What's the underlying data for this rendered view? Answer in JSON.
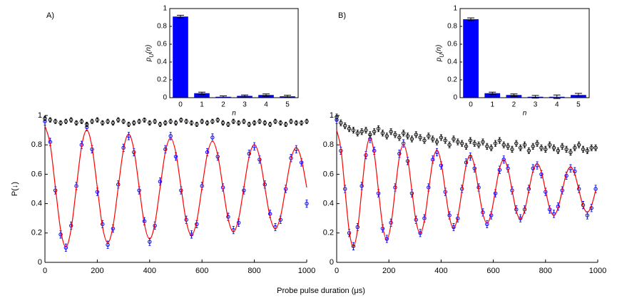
{
  "xlabel": "Probe pulse duration (μs)",
  "chart_data": [
    {
      "type": "scatter",
      "panel": "A)",
      "ylabel": "P(↓)",
      "xlim": [
        0,
        1000
      ],
      "ylim": [
        0,
        1
      ],
      "xticks": [
        0,
        200,
        400,
        600,
        800,
        1000
      ],
      "yticks": [
        0,
        0.2,
        0.4,
        0.6,
        0.8,
        1
      ],
      "x": [
        0,
        20,
        40,
        60,
        80,
        100,
        120,
        140,
        160,
        180,
        200,
        220,
        240,
        260,
        280,
        300,
        320,
        340,
        360,
        380,
        400,
        420,
        440,
        460,
        480,
        500,
        520,
        540,
        560,
        580,
        600,
        620,
        640,
        660,
        680,
        700,
        720,
        740,
        760,
        780,
        800,
        820,
        840,
        860,
        880,
        900,
        920,
        940,
        960,
        980,
        1000
      ],
      "series": [
        {
          "type": "line",
          "color": "#ff0000",
          "values": [
            0.93,
            0.804,
            0.51,
            0.221,
            0.105,
            0.226,
            0.51,
            0.789,
            0.901,
            0.784,
            0.51,
            0.241,
            0.133,
            0.246,
            0.51,
            0.769,
            0.874,
            0.765,
            0.51,
            0.26,
            0.159,
            0.264,
            0.51,
            0.751,
            0.848,
            0.747,
            0.51,
            0.277,
            0.184,
            0.282,
            0.51,
            0.734,
            0.825,
            0.731,
            0.51,
            0.294,
            0.207,
            0.298,
            0.51,
            0.719,
            0.802,
            0.715,
            0.51,
            0.309,
            0.228,
            0.313,
            0.51,
            0.704,
            0.782,
            0.7,
            0.51
          ]
        },
        {
          "type": "scatter",
          "color": "#0000ff",
          "error": 0.025,
          "values": [
            0.96,
            0.82,
            0.49,
            0.19,
            0.1,
            0.25,
            0.52,
            0.8,
            0.92,
            0.77,
            0.48,
            0.26,
            0.12,
            0.23,
            0.53,
            0.78,
            0.86,
            0.75,
            0.49,
            0.28,
            0.14,
            0.25,
            0.55,
            0.77,
            0.86,
            0.72,
            0.49,
            0.29,
            0.19,
            0.26,
            0.52,
            0.75,
            0.85,
            0.72,
            0.51,
            0.31,
            0.22,
            0.27,
            0.49,
            0.74,
            0.79,
            0.7,
            0.53,
            0.33,
            0.24,
            0.29,
            0.5,
            0.71,
            0.77,
            0.68,
            0.4
          ]
        },
        {
          "type": "scatter",
          "color": "#000000",
          "error": 0.015,
          "values": [
            0.98,
            0.97,
            0.96,
            0.95,
            0.96,
            0.97,
            0.95,
            0.96,
            0.94,
            0.96,
            0.97,
            0.95,
            0.96,
            0.95,
            0.97,
            0.96,
            0.94,
            0.95,
            0.96,
            0.97,
            0.95,
            0.96,
            0.94,
            0.95,
            0.96,
            0.95,
            0.97,
            0.96,
            0.95,
            0.94,
            0.96,
            0.95,
            0.96,
            0.97,
            0.95,
            0.94,
            0.96,
            0.95,
            0.96,
            0.94,
            0.95,
            0.96,
            0.95,
            0.94,
            0.96,
            0.95,
            0.94,
            0.96,
            0.95,
            0.95,
            0.96
          ]
        }
      ]
    },
    {
      "type": "bar",
      "xlabel": "n",
      "ylabel": [
        "p",
        "U",
        "(n)"
      ],
      "categories": [
        "0",
        "1",
        "2",
        "3",
        "4",
        "5"
      ],
      "values": [
        0.91,
        0.05,
        0.01,
        0.02,
        0.03,
        0.015
      ],
      "errors": [
        0.015,
        0.012,
        0.01,
        0.01,
        0.012,
        0.012
      ],
      "color": "#0000ff",
      "ylim": [
        0,
        1
      ],
      "yticks": [
        0,
        0.2,
        0.4,
        0.6,
        0.8,
        1
      ]
    },
    {
      "type": "scatter",
      "panel": "B)",
      "xlim": [
        0,
        1000
      ],
      "ylim": [
        0,
        1
      ],
      "xticks": [
        0,
        200,
        400,
        600,
        800,
        1000
      ],
      "yticks": [
        0,
        0.2,
        0.4,
        0.6,
        0.8,
        1
      ],
      "x": [
        0,
        16,
        32,
        48,
        64,
        80,
        96,
        112,
        128,
        144,
        160,
        176,
        192,
        208,
        224,
        240,
        256,
        272,
        288,
        304,
        320,
        336,
        352,
        368,
        384,
        400,
        416,
        432,
        448,
        464,
        480,
        496,
        512,
        528,
        544,
        560,
        576,
        592,
        608,
        624,
        640,
        656,
        672,
        688,
        704,
        720,
        736,
        752,
        768,
        784,
        800,
        816,
        832,
        848,
        864,
        880,
        896,
        912,
        928,
        944,
        960,
        976,
        992
      ],
      "series": [
        {
          "type": "line",
          "color": "#ff0000",
          "values": [
            0.9,
            0.775,
            0.49,
            0.214,
            0.107,
            0.223,
            0.49,
            0.747,
            0.848,
            0.739,
            0.49,
            0.249,
            0.155,
            0.257,
            0.49,
            0.715,
            0.803,
            0.708,
            0.49,
            0.279,
            0.197,
            0.286,
            0.49,
            0.687,
            0.764,
            0.68,
            0.49,
            0.306,
            0.234,
            0.312,
            0.49,
            0.662,
            0.729,
            0.656,
            0.49,
            0.33,
            0.266,
            0.334,
            0.49,
            0.641,
            0.699,
            0.636,
            0.49,
            0.349,
            0.295,
            0.354,
            0.49,
            0.622,
            0.673,
            0.617,
            0.49,
            0.367,
            0.319,
            0.371,
            0.49,
            0.605,
            0.65,
            0.601,
            0.49,
            0.383,
            0.341,
            0.386,
            0.49
          ]
        },
        {
          "type": "scatter",
          "color": "#0000ff",
          "error": 0.025,
          "values": [
            0.97,
            0.76,
            0.5,
            0.2,
            0.11,
            0.24,
            0.52,
            0.73,
            0.84,
            0.76,
            0.47,
            0.23,
            0.16,
            0.27,
            0.51,
            0.74,
            0.81,
            0.69,
            0.47,
            0.29,
            0.2,
            0.3,
            0.51,
            0.7,
            0.75,
            0.66,
            0.48,
            0.32,
            0.24,
            0.3,
            0.5,
            0.68,
            0.72,
            0.64,
            0.51,
            0.34,
            0.26,
            0.32,
            0.47,
            0.63,
            0.7,
            0.64,
            0.49,
            0.36,
            0.3,
            0.36,
            0.5,
            0.64,
            0.66,
            0.6,
            0.48,
            0.36,
            0.33,
            0.38,
            0.49,
            0.59,
            0.64,
            0.62,
            0.5,
            0.39,
            0.32,
            0.37,
            0.5
          ]
        },
        {
          "type": "scatter",
          "color": "#000000",
          "error": 0.02,
          "values": [
            0.99,
            0.95,
            0.93,
            0.91,
            0.9,
            0.88,
            0.89,
            0.9,
            0.87,
            0.89,
            0.91,
            0.88,
            0.86,
            0.89,
            0.87,
            0.85,
            0.88,
            0.86,
            0.84,
            0.87,
            0.85,
            0.83,
            0.86,
            0.84,
            0.82,
            0.85,
            0.83,
            0.8,
            0.84,
            0.82,
            0.81,
            0.79,
            0.83,
            0.81,
            0.8,
            0.82,
            0.79,
            0.78,
            0.81,
            0.83,
            0.8,
            0.79,
            0.77,
            0.81,
            0.78,
            0.8,
            0.76,
            0.79,
            0.81,
            0.78,
            0.77,
            0.8,
            0.78,
            0.76,
            0.79,
            0.77,
            0.75,
            0.78,
            0.8,
            0.77,
            0.76,
            0.78,
            0.78
          ]
        }
      ]
    },
    {
      "type": "bar",
      "xlabel": "n",
      "ylabel": [
        "p",
        "U",
        "(n)"
      ],
      "categories": [
        "0",
        "1",
        "2",
        "3",
        "4",
        "5"
      ],
      "values": [
        0.88,
        0.05,
        0.03,
        0.01,
        0.01,
        0.03
      ],
      "errors": [
        0.015,
        0.012,
        0.012,
        0.015,
        0.02,
        0.018
      ],
      "color": "#0000ff",
      "ylim": [
        0,
        1
      ],
      "yticks": [
        0,
        0.2,
        0.4,
        0.6,
        0.8,
        1
      ]
    }
  ]
}
